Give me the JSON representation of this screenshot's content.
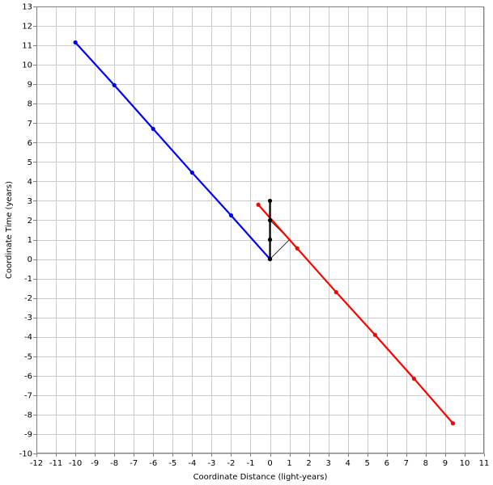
{
  "chart_data": {
    "type": "line",
    "title": "",
    "xlabel": "Coordinate Distance (light-years)",
    "ylabel": "Coordinate Time (years)",
    "xlim": [
      -12,
      11
    ],
    "ylim": [
      -10,
      13
    ],
    "x_ticks": [
      -12,
      -11,
      -10,
      -9,
      -8,
      -7,
      -6,
      -5,
      -4,
      -3,
      -2,
      -1,
      0,
      1,
      2,
      3,
      4,
      5,
      6,
      7,
      8,
      9,
      10,
      11
    ],
    "y_ticks": [
      -10,
      -9,
      -8,
      -7,
      -6,
      -5,
      -4,
      -3,
      -2,
      -1,
      0,
      1,
      2,
      3,
      4,
      5,
      6,
      7,
      8,
      9,
      10,
      11,
      12,
      13
    ],
    "grid": true,
    "legend": "none",
    "series": [
      {
        "color": "#0000ff",
        "points": [
          [
            0,
            0
          ],
          [
            -2,
            2.25
          ],
          [
            -4,
            4.45
          ],
          [
            -6,
            6.7
          ],
          [
            -8,
            8.95
          ],
          [
            -10,
            11.15
          ]
        ]
      },
      {
        "color": "#ff0000",
        "points": [
          [
            -0.6,
            2.8
          ],
          [
            1.4,
            0.55
          ],
          [
            3.4,
            -1.7
          ],
          [
            5.4,
            -3.9
          ],
          [
            7.4,
            -6.15
          ],
          [
            9.4,
            -8.45
          ]
        ]
      },
      {
        "color": "#000000",
        "points": [
          [
            0,
            0
          ],
          [
            0,
            1
          ],
          [
            0,
            2
          ],
          [
            0,
            3
          ]
        ]
      }
    ],
    "light_rays": {
      "color": "#000000",
      "segments": [
        [
          [
            0,
            0
          ],
          [
            1.0,
            1.0
          ]
        ],
        [
          [
            1.0,
            1.0
          ],
          [
            0,
            2.0
          ]
        ]
      ]
    }
  }
}
